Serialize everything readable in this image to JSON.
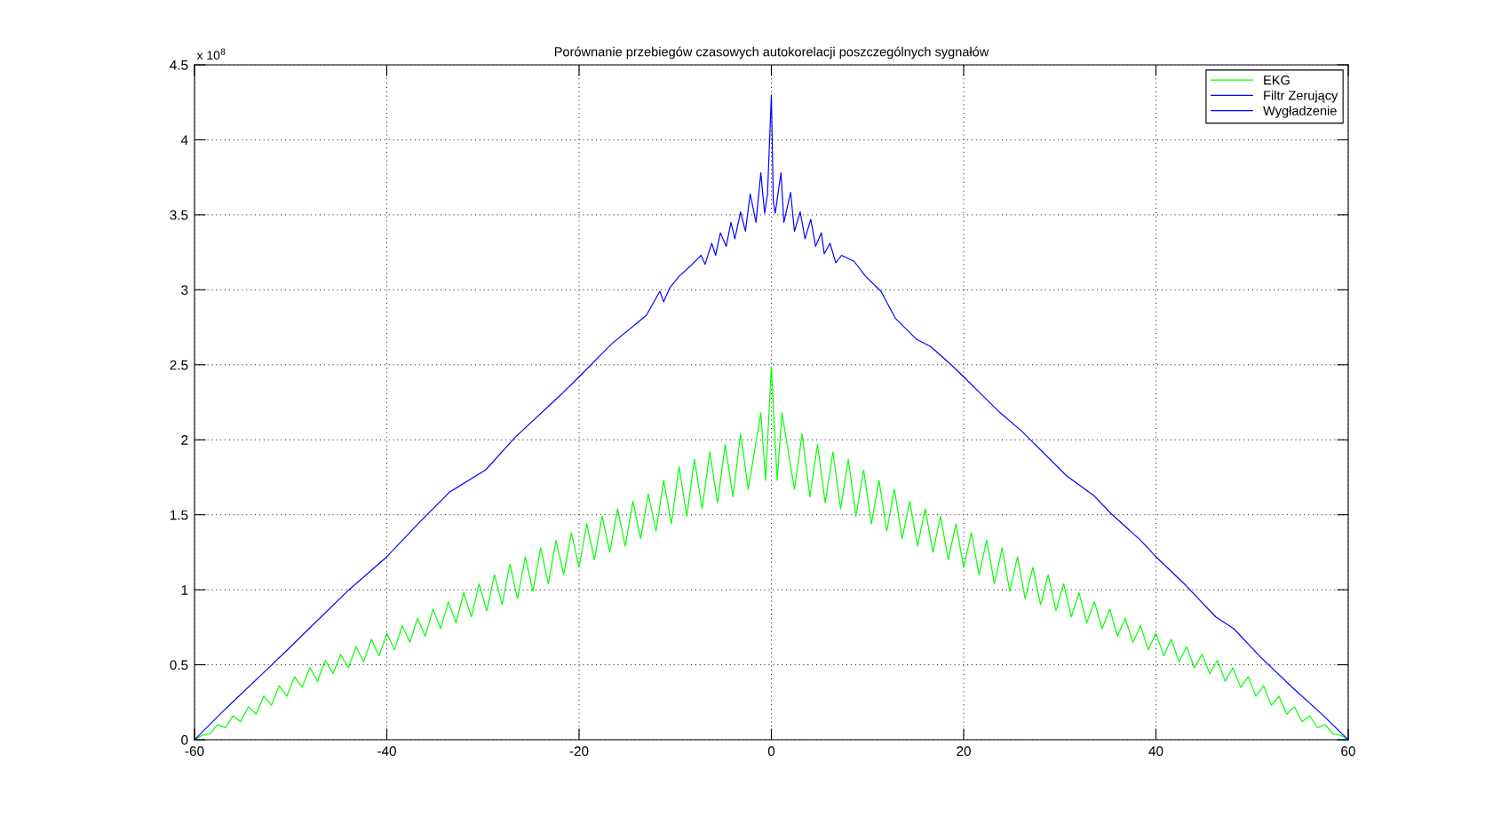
{
  "chart_data": {
    "type": "line",
    "title": "Porównanie przebiegów czasowych autokorelacji poszczególnych sygnałów",
    "annotations": [
      "x 10$^{8}$"
    ],
    "xlim": [
      -60,
      60
    ],
    "xticks": [
      -60,
      -40,
      -20,
      0,
      20,
      40,
      60
    ],
    "ylim": [
      0,
      4.5
    ],
    "yticks": [
      0,
      0.5,
      1,
      1.5,
      2,
      2.5,
      3,
      3.5,
      4,
      4.5
    ],
    "grid": true,
    "legend": "top right",
    "series": [
      {
        "name": "EKG",
        "color": "#00ff00",
        "x": [
          -60,
          -59.2,
          -58.4,
          -57.6,
          -56.8,
          -56,
          -55.2,
          -54.4,
          -53.6,
          -52.8,
          -52,
          -51.2,
          -50.4,
          -49.6,
          -48.8,
          -48,
          -47.2,
          -46.4,
          -45.6,
          -44.8,
          -44,
          -43.2,
          -42.4,
          -41.6,
          -40.8,
          -40,
          -39.2,
          -38.4,
          -37.6,
          -36.8,
          -36,
          -35.2,
          -34.4,
          -33.6,
          -32.8,
          -32,
          -31.2,
          -30.4,
          -29.6,
          -28.8,
          -28,
          -27.2,
          -26.4,
          -25.6,
          -24.8,
          -24,
          -23.2,
          -22.4,
          -21.6,
          -20.8,
          -20,
          -19.2,
          -18.4,
          -17.6,
          -16.8,
          -16,
          -15.2,
          -14.4,
          -13.6,
          -12.8,
          -12,
          -11.2,
          -10.4,
          -9.6,
          -8.8,
          -8,
          -7.2,
          -6.4,
          -5.6,
          -4.8,
          -4,
          -3.2,
          -2.4,
          -1.1,
          -0.6,
          0,
          0.6,
          1.1,
          2.4,
          3.2,
          4,
          4.8,
          5.6,
          6.4,
          7.2,
          8,
          8.8,
          9.6,
          10.4,
          11.2,
          12,
          12.8,
          13.6,
          14.4,
          15.2,
          16,
          16.8,
          17.6,
          18.4,
          19.2,
          20,
          20.8,
          21.6,
          22.4,
          23.2,
          24,
          24.8,
          25.6,
          26.4,
          27.2,
          28,
          28.8,
          29.6,
          30.4,
          31.2,
          32,
          32.8,
          33.6,
          34.4,
          35.2,
          36,
          36.8,
          37.6,
          38.4,
          39.2,
          40,
          40.8,
          41.6,
          42.4,
          43.2,
          44,
          44.8,
          45.6,
          46.4,
          47.2,
          48,
          48.8,
          49.6,
          50.4,
          51.2,
          52,
          52.8,
          53.6,
          54.4,
          55.2,
          56,
          56.8,
          57.6,
          58.4,
          59.2,
          60
        ],
        "values": [
          0,
          0.03,
          0.04,
          0.1,
          0.08,
          0.16,
          0.12,
          0.22,
          0.17,
          0.29,
          0.23,
          0.36,
          0.29,
          0.42,
          0.35,
          0.48,
          0.39,
          0.53,
          0.44,
          0.57,
          0.48,
          0.62,
          0.52,
          0.67,
          0.56,
          0.71,
          0.6,
          0.76,
          0.65,
          0.81,
          0.69,
          0.87,
          0.74,
          0.92,
          0.78,
          0.98,
          0.82,
          1.04,
          0.86,
          1.1,
          0.9,
          1.17,
          0.94,
          1.22,
          0.99,
          1.28,
          1.04,
          1.33,
          1.1,
          1.38,
          1.15,
          1.44,
          1.2,
          1.49,
          1.25,
          1.54,
          1.29,
          1.59,
          1.34,
          1.64,
          1.39,
          1.73,
          1.44,
          1.82,
          1.49,
          1.87,
          1.54,
          1.92,
          1.58,
          1.97,
          1.62,
          2.04,
          1.67,
          2.18,
          1.73,
          2.49,
          1.73,
          2.18,
          1.67,
          2.04,
          1.62,
          1.97,
          1.58,
          1.92,
          1.54,
          1.87,
          1.49,
          1.8,
          1.44,
          1.73,
          1.39,
          1.67,
          1.34,
          1.59,
          1.29,
          1.54,
          1.25,
          1.49,
          1.2,
          1.44,
          1.15,
          1.38,
          1.1,
          1.33,
          1.04,
          1.28,
          0.99,
          1.22,
          0.94,
          1.15,
          0.9,
          1.1,
          0.86,
          1.04,
          0.82,
          0.98,
          0.78,
          0.92,
          0.74,
          0.87,
          0.69,
          0.81,
          0.65,
          0.76,
          0.6,
          0.71,
          0.56,
          0.67,
          0.52,
          0.62,
          0.48,
          0.57,
          0.44,
          0.53,
          0.39,
          0.48,
          0.35,
          0.42,
          0.29,
          0.36,
          0.23,
          0.29,
          0.17,
          0.22,
          0.12,
          0.16,
          0.08,
          0.1,
          0.04,
          0.03,
          0
        ]
      },
      {
        "name": "Filtr Zerujący",
        "color": "#0000ff"
      },
      {
        "name": "Wygładzenie",
        "color": "#0000ff",
        "x": [
          -60,
          -57.2,
          -53.1,
          -50,
          -48.1,
          -44.1,
          -40,
          -36.6,
          -33.5,
          -29.7,
          -26.6,
          -21.9,
          -20,
          -16.6,
          -13,
          -11.6,
          -11.2,
          -10.6,
          -9.6,
          -8.4,
          -7.3,
          -6.9,
          -6.2,
          -5.8,
          -5.3,
          -4.7,
          -4.2,
          -3.8,
          -3.2,
          -2.7,
          -2.2,
          -1.6,
          -1.1,
          -0.7,
          -0.4,
          0,
          0.2,
          0.4,
          1,
          1.3,
          2,
          2.4,
          3,
          3.5,
          4.1,
          4.6,
          5.2,
          5.5,
          6.1,
          6.7,
          7.3,
          8.6,
          9.8,
          11.4,
          12.9,
          15.1,
          16.6,
          18.7,
          20,
          21.9,
          23.8,
          26,
          28.2,
          30.7,
          33.5,
          35.3,
          38.4,
          40,
          43.1,
          46.2,
          48.1,
          50.9,
          54,
          57.1,
          60
        ],
        "values": [
          0,
          0.18,
          0.43,
          0.62,
          0.74,
          0.99,
          1.22,
          1.45,
          1.65,
          1.8,
          2.02,
          2.3,
          2.42,
          2.64,
          2.83,
          2.99,
          2.92,
          3.01,
          3.09,
          3.16,
          3.23,
          3.17,
          3.31,
          3.23,
          3.38,
          3.29,
          3.45,
          3.34,
          3.52,
          3.39,
          3.64,
          3.45,
          3.78,
          3.51,
          3.64,
          4.3,
          3.59,
          3.51,
          3.78,
          3.45,
          3.65,
          3.39,
          3.52,
          3.34,
          3.47,
          3.29,
          3.38,
          3.24,
          3.31,
          3.18,
          3.23,
          3.19,
          3.09,
          2.99,
          2.81,
          2.67,
          2.62,
          2.5,
          2.42,
          2.3,
          2.18,
          2.06,
          1.92,
          1.76,
          1.63,
          1.51,
          1.33,
          1.22,
          1.03,
          0.82,
          0.74,
          0.55,
          0.36,
          0.18,
          0
        ]
      }
    ]
  }
}
